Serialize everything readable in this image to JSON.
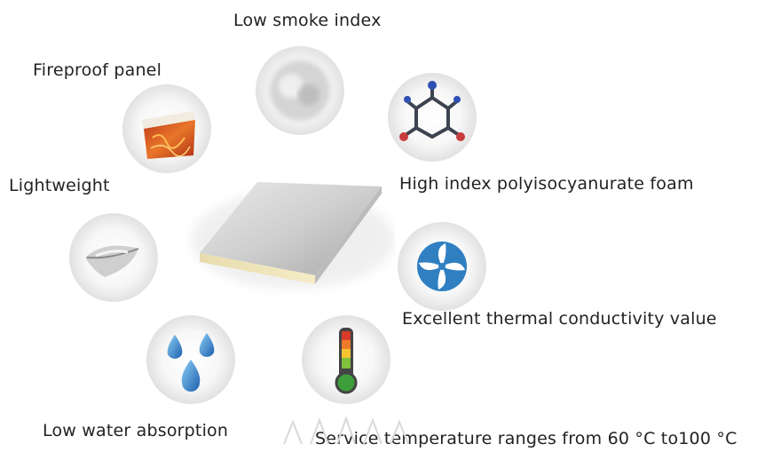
{
  "features": {
    "low_smoke": "Low smoke index",
    "fireproof": "Fireproof panel",
    "polyisocyanurate": "High index polyisocyanurate foam",
    "lightweight": "Lightweight",
    "thermal": "Excellent thermal conductivity value",
    "water": "Low water absorption",
    "temperature": "Service temperature ranges from 60 °C to100 °C"
  },
  "icons": {
    "low_smoke": "smoke-icon",
    "fireproof": "fire-panel-icon",
    "polyisocyanurate": "molecule-icon",
    "lightweight": "feather-icon",
    "thermal": "fan-icon",
    "water": "water-drops-icon",
    "temperature": "thermometer-icon",
    "center": "insulated-panel-icon"
  }
}
